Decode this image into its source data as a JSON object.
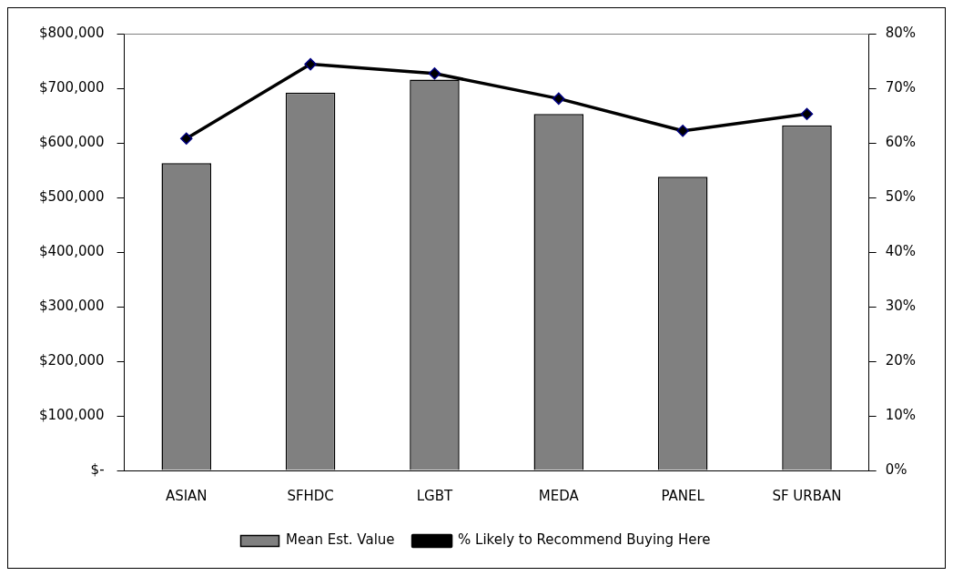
{
  "chart_data": {
    "type": "bar",
    "categories": [
      "ASIAN",
      "SFHDC",
      "LGBT",
      "MEDA",
      "PANEL",
      "SF URBAN"
    ],
    "series": [
      {
        "name": "Mean Est. Value",
        "color": "#808080",
        "values": [
          563000,
          692000,
          716000,
          653000,
          538000,
          632000
        ]
      },
      {
        "name": "% Likely to Recommend Buying Here",
        "type": "line",
        "axis": "y2",
        "color": "#000000",
        "values": [
          60.8,
          74.4,
          72.7,
          68.1,
          62.2,
          65.3
        ]
      }
    ],
    "ylim": [
      0,
      800000
    ],
    "yticks": [
      {
        "value": 0,
        "label": "$-"
      },
      {
        "value": 100000,
        "label": "$100,000"
      },
      {
        "value": 200000,
        "label": "$200,000"
      },
      {
        "value": 300000,
        "label": "$300,000"
      },
      {
        "value": 400000,
        "label": "$400,000"
      },
      {
        "value": 500000,
        "label": "$500,000"
      },
      {
        "value": 600000,
        "label": "$600,000"
      },
      {
        "value": 700000,
        "label": "$700,000"
      },
      {
        "value": 800000,
        "label": "$800,000"
      }
    ],
    "y2lim": [
      0,
      80
    ],
    "y2ticks": [
      {
        "value": 0,
        "label": "0%"
      },
      {
        "value": 10,
        "label": "10%"
      },
      {
        "value": 20,
        "label": "20%"
      },
      {
        "value": 30,
        "label": "30%"
      },
      {
        "value": 40,
        "label": "40%"
      },
      {
        "value": 50,
        "label": "50%"
      },
      {
        "value": 60,
        "label": "60%"
      },
      {
        "value": 70,
        "label": "70%"
      },
      {
        "value": 80,
        "label": "80%"
      }
    ],
    "marker": "diamond",
    "legend": "bottom",
    "grid": false
  }
}
